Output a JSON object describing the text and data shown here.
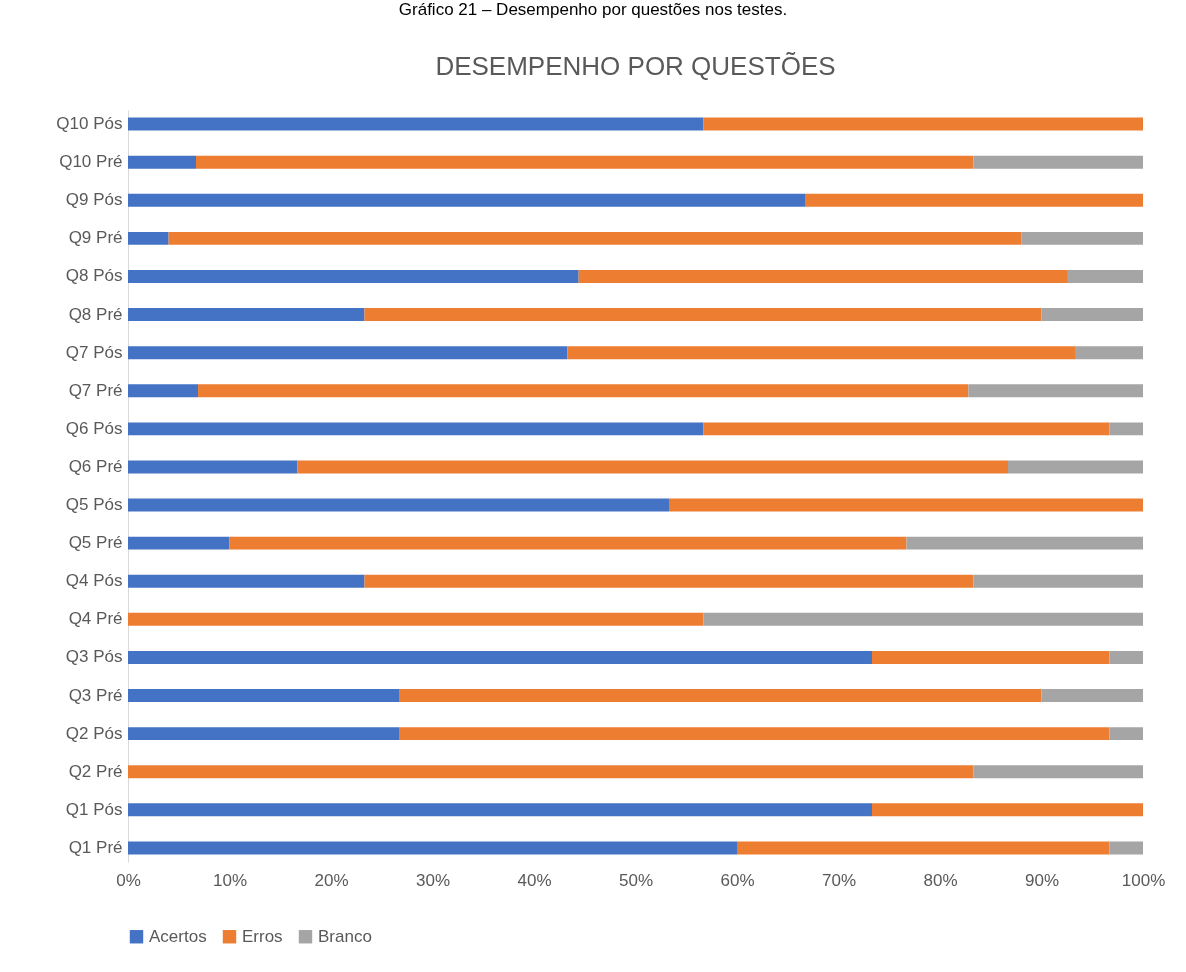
{
  "chart_data": {
    "type": "bar",
    "orientation": "horizontal",
    "stacked": true,
    "title": "DESEMPENHO POR QUESTÕES",
    "annotations": [
      "Gráfico 21 – Desempenho por questões nos testes."
    ],
    "categories": [
      "Q10 Pós",
      "Q10 Pré",
      "Q9 Pós",
      "Q9 Pré",
      "Q8 Pós",
      "Q8 Pré",
      "Q7 Pós",
      "Q7 Pré",
      "Q6 Pós",
      "Q6 Pré",
      "Q5 Pós",
      "Q5 Pré",
      "Q4 Pós",
      "Q4 Pré",
      "Q3 Pós",
      "Q3 Pré",
      "Q2 Pós",
      "Q2 Pré",
      "Q1 Pós",
      "Q1 Pré"
    ],
    "series": [
      {
        "name": "Acertos",
        "color": "#4472c4",
        "values": [
          56.7,
          6.7,
          66.7,
          4,
          44.4,
          23.3,
          43.3,
          6.9,
          56.7,
          16.7,
          53.3,
          10,
          23.3,
          0,
          73.3,
          26.7,
          26.7,
          0,
          73.3,
          60
        ]
      },
      {
        "name": "Erros",
        "color": "#ed7d31",
        "values": [
          43.3,
          76.6,
          33.3,
          84,
          48.2,
          66.7,
          50,
          75.9,
          40,
          70,
          46.7,
          66.7,
          60,
          56.7,
          23.4,
          63.3,
          70,
          83.3,
          26.7,
          36.7
        ]
      },
      {
        "name": "Branco",
        "color": "#a5a5a5",
        "values": [
          0,
          16.7,
          0,
          12,
          7.4,
          10,
          6.7,
          17.2,
          3.3,
          13.3,
          0,
          23.3,
          16.7,
          43.3,
          3.3,
          10,
          3.3,
          16.7,
          0,
          3.3
        ]
      }
    ],
    "xlim": [
      0,
      100
    ],
    "xticks": [
      {
        "value": 0,
        "label": "0%"
      },
      {
        "value": 10,
        "label": "10%"
      },
      {
        "value": 20,
        "label": "20%"
      },
      {
        "value": 30,
        "label": "30%"
      },
      {
        "value": 40,
        "label": "40%"
      },
      {
        "value": 50,
        "label": "50%"
      },
      {
        "value": 60,
        "label": "60%"
      },
      {
        "value": 70,
        "label": "70%"
      },
      {
        "value": 80,
        "label": "80%"
      },
      {
        "value": 90,
        "label": "90%"
      },
      {
        "value": 100,
        "label": "100%"
      }
    ],
    "grid": false,
    "legend": "bottom"
  }
}
